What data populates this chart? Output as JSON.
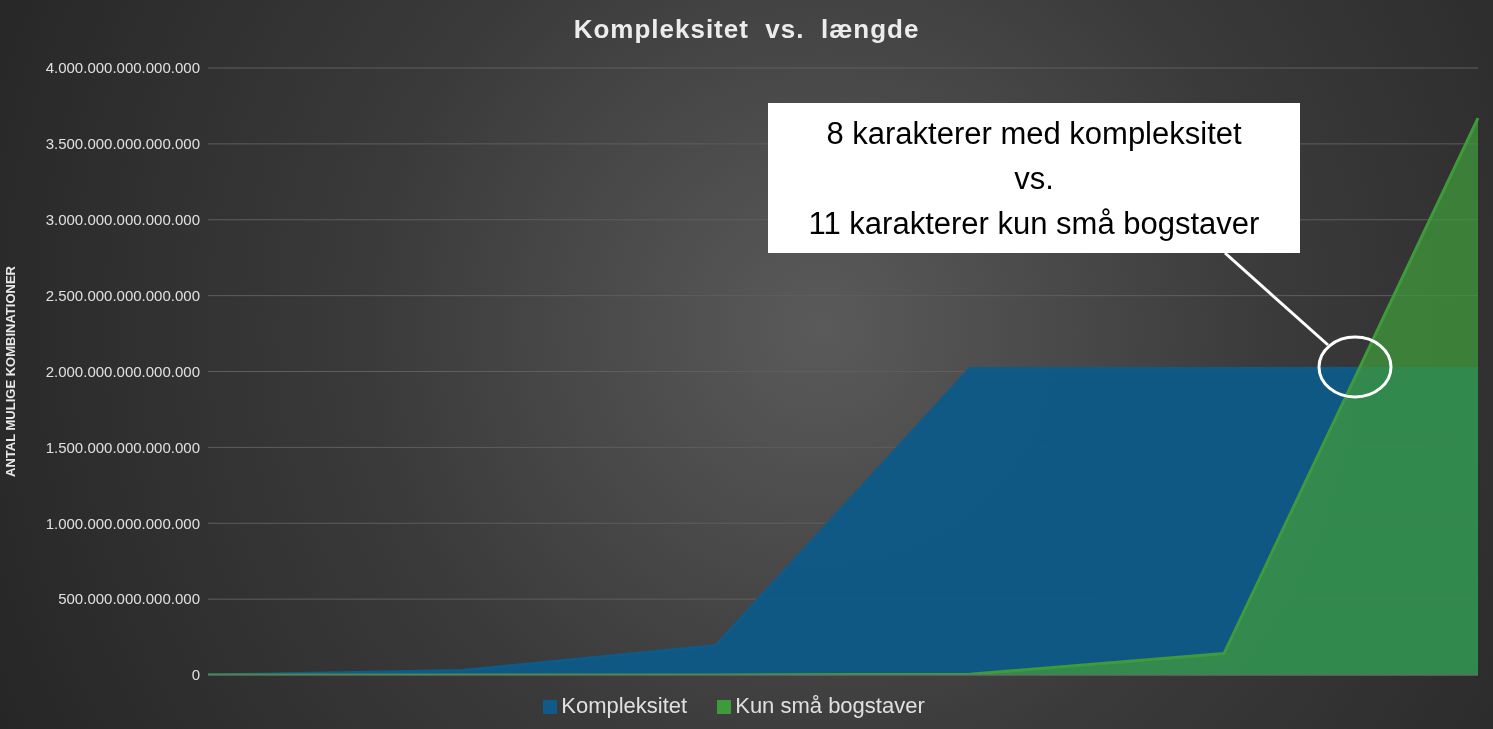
{
  "chart_data": {
    "type": "area",
    "title": "Kompleksitet  vs.  længde",
    "ylabel": "ANTAL MULIGE KOMBINATIONER",
    "categories": [
      null,
      null,
      null,
      null,
      null,
      null
    ],
    "series": [
      {
        "name": "Kompleksitet",
        "color": "#0e5a88",
        "values": [
          0,
          30000000000000,
          195000000000000,
          2020000000000000,
          2020000000000000,
          2020000000000000
        ]
      },
      {
        "name": "Kun små bogstaver",
        "color": "#3f9a3c",
        "values": [
          0,
          0,
          0,
          5000000000000,
          141000000000000,
          3670000000000000
        ]
      }
    ],
    "ylim": [
      0,
      4000000000000000
    ],
    "yticks": [
      0,
      {
        "value": 500000000000000,
        "label": "500.000.000.000.000"
      },
      {
        "value": 1000000000000000,
        "label": "1.000.000.000.000.000"
      },
      {
        "value": 1500000000000000,
        "label": "1.500.000.000.000.000"
      },
      {
        "value": 2000000000000000,
        "label": "2.000.000.000.000.000"
      },
      {
        "value": 2500000000000000,
        "label": "2.500.000.000.000.000"
      },
      {
        "value": 3000000000000000,
        "label": "3.000.000.000.000.000"
      },
      {
        "value": 3500000000000000,
        "label": "3.500.000.000.000.000"
      },
      {
        "value": 4000000000000000,
        "label": "4.000.000.000.000.000"
      }
    ],
    "tick_labels": "y",
    "grid": "y",
    "legend": "bottom",
    "annotations": [
      "8 karakterer med kompleksitet\nvs.\n11 karakterer kun små bogstaver"
    ]
  }
}
